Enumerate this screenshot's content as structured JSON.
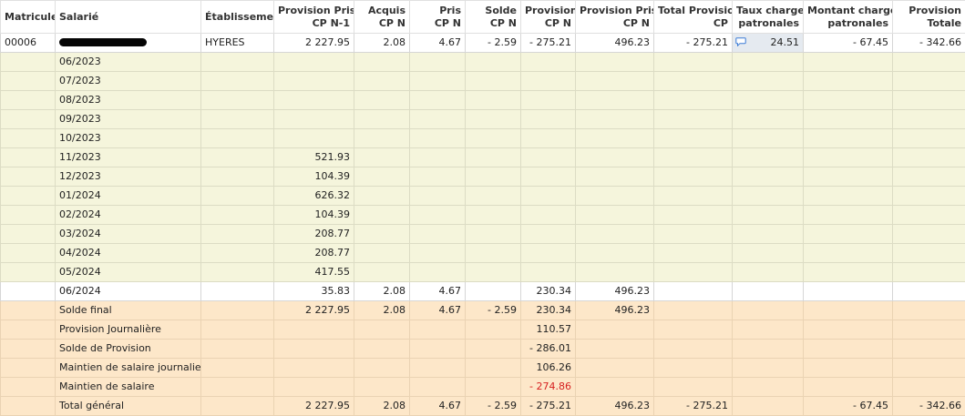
{
  "headers": {
    "matricule": "Matricule",
    "salarie": "Salarié",
    "etablissement": "Établissement",
    "prov_prise_n1_line1": "Provision Prise",
    "prov_prise_n1_line2": "CP N-1",
    "acquis_line1": "Acquis",
    "acquis_line2": "CP N",
    "pris_line1": "Pris",
    "pris_line2": "CP N",
    "solde_line1": "Solde",
    "solde_line2": "CP N",
    "provision_line1": "Provision",
    "provision_line2": "CP N",
    "prov_prise_n_line1": "Provision Prise",
    "prov_prise_n_line2": "CP N",
    "total_prov_line1": "Total Provision",
    "total_prov_line2": "CP",
    "taux_line1": "Taux charges",
    "taux_line2": "patronales",
    "montant_line1": "Montant charges",
    "montant_line2": "patronales",
    "prov_totale_line1": "Provision",
    "prov_totale_line2": "Totale"
  },
  "employee": {
    "matricule": "00006",
    "etablissement": "HYERES",
    "prov_prise_n1": "2 227.95",
    "acquis": "2.08",
    "pris": "4.67",
    "solde": "- 2.59",
    "provision": "- 275.21",
    "prov_prise_n": "496.23",
    "total_prov": "- 275.21",
    "taux": "24.51",
    "montant": "- 67.45",
    "prov_totale": "- 342.66"
  },
  "months": [
    {
      "label": "06/2023",
      "value": ""
    },
    {
      "label": "07/2023",
      "value": ""
    },
    {
      "label": "08/2023",
      "value": ""
    },
    {
      "label": "09/2023",
      "value": ""
    },
    {
      "label": "10/2023",
      "value": ""
    },
    {
      "label": "11/2023",
      "value": "521.93"
    },
    {
      "label": "12/2023",
      "value": "104.39"
    },
    {
      "label": "01/2024",
      "value": "626.32"
    },
    {
      "label": "02/2024",
      "value": "104.39"
    },
    {
      "label": "03/2024",
      "value": "208.77"
    },
    {
      "label": "04/2024",
      "value": "208.77"
    },
    {
      "label": "05/2024",
      "value": "417.55"
    }
  ],
  "current_month": {
    "label": "06/2024",
    "prov_prise_n1": "35.83",
    "acquis": "2.08",
    "pris": "4.67",
    "provision": "230.34",
    "prov_prise_n": "496.23"
  },
  "solde_final": {
    "label": "Solde final",
    "prov_prise_n1": "2 227.95",
    "acquis": "2.08",
    "pris": "4.67",
    "solde": "- 2.59",
    "provision": "230.34",
    "prov_prise_n": "496.23"
  },
  "provision_journaliere": {
    "label": "Provision Journalière",
    "provision": "110.57"
  },
  "solde_provision": {
    "label": "Solde de Provision",
    "provision": "- 286.01"
  },
  "maintien_journalier": {
    "label": "Maintien de salaire journalier",
    "provision": "106.26"
  },
  "maintien_salaire": {
    "label": "Maintien de salaire",
    "provision": "- 274.86"
  },
  "total_general": {
    "label": "Total général",
    "prov_prise_n1": "2 227.95",
    "acquis": "2.08",
    "pris": "4.67",
    "solde": "- 2.59",
    "provision": "- 275.21",
    "prov_prise_n": "496.23",
    "total_prov": "- 275.21",
    "montant": "- 67.45",
    "prov_totale": "- 342.66"
  },
  "colors": {
    "history_row_bg": "#f5f5dc",
    "summary_row_bg": "#fde7c9",
    "negative_text": "#d62020",
    "taux_cell_bg": "#e5eaf0"
  },
  "icons": {
    "comment": "comment-icon"
  }
}
